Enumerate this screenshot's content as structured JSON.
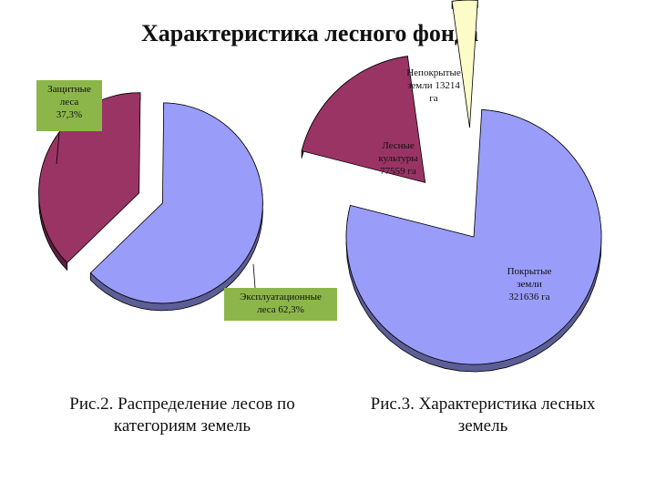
{
  "slide": {
    "title": "Характеристика лесного фонда",
    "caption_left": "Рис.2.  Распределение лесов по категориям земель",
    "caption_right": "Рис.3.  Характеристика лесных земель"
  },
  "colors": {
    "periwinkle": "#9a9cfa",
    "plum": "#9a3465",
    "cream": "#fcfcc8",
    "label_green": "#8cb64a"
  },
  "chart_data": [
    {
      "type": "pie",
      "style": "3d-exploded",
      "title": "",
      "slices": [
        {
          "label_lines": [
            "Защитные",
            "леса",
            "37,3%"
          ],
          "value": 37.3,
          "color": "#9a3465"
        },
        {
          "label_lines": [
            "Эксплуатационные",
            "леса 62,3%"
          ],
          "value": 62.3,
          "color": "#9a9cfa"
        }
      ]
    },
    {
      "type": "pie",
      "style": "3d-exploded",
      "title": "",
      "slices": [
        {
          "label_lines": [
            "Покрытые",
            "земли",
            "321636 га"
          ],
          "value": 321636,
          "color": "#9a9cfa"
        },
        {
          "label_lines": [
            "Лесные",
            "культуры",
            "77559 га"
          ],
          "value": 77559,
          "color": "#9a3465"
        },
        {
          "label_lines": [
            "Непокрытые",
            "земли 13214",
            "га"
          ],
          "value": 13214,
          "color": "#fcfcc8"
        }
      ]
    }
  ]
}
